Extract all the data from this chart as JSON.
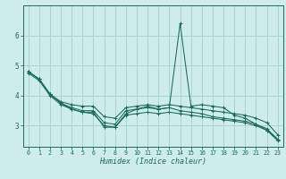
{
  "xlabel": "Humidex (Indice chaleur)",
  "xlim": [
    -0.5,
    23.5
  ],
  "ylim": [
    2.3,
    7.0
  ],
  "xticks": [
    0,
    1,
    2,
    3,
    4,
    5,
    6,
    7,
    8,
    9,
    10,
    11,
    12,
    13,
    14,
    15,
    16,
    17,
    18,
    19,
    20,
    21,
    22,
    23
  ],
  "yticks": [
    3,
    4,
    5,
    6
  ],
  "bg_color": "#ceecea",
  "grid_color": "#aed4d0",
  "line_color": "#1a6b5a",
  "series": [
    {
      "x": [
        0,
        1,
        2,
        3,
        4,
        5,
        6,
        7,
        8,
        9,
        10,
        11,
        12,
        13,
        14,
        15,
        16,
        17,
        18,
        19,
        20,
        21,
        22,
        23
      ],
      "y": [
        4.8,
        4.55,
        4.05,
        3.75,
        3.55,
        3.45,
        3.45,
        2.95,
        2.95,
        3.4,
        3.55,
        3.65,
        3.55,
        3.6,
        6.4,
        3.65,
        3.7,
        3.65,
        3.6,
        3.35,
        3.25,
        3.05,
        2.85,
        2.55
      ]
    },
    {
      "x": [
        0,
        1,
        2,
        3,
        4,
        5,
        6,
        7,
        8,
        9,
        10,
        11,
        12,
        13,
        14,
        15,
        16,
        17,
        18,
        19,
        20,
        21,
        22,
        23
      ],
      "y": [
        4.8,
        4.55,
        4.05,
        3.8,
        3.7,
        3.65,
        3.65,
        3.3,
        3.25,
        3.6,
        3.65,
        3.7,
        3.65,
        3.7,
        3.65,
        3.6,
        3.55,
        3.5,
        3.45,
        3.4,
        3.35,
        3.25,
        3.1,
        2.7
      ]
    },
    {
      "x": [
        0,
        1,
        2,
        3,
        4,
        5,
        6,
        7,
        8,
        9,
        10,
        11,
        12,
        13,
        14,
        15,
        16,
        17,
        18,
        19,
        20,
        21,
        22,
        23
      ],
      "y": [
        4.8,
        4.55,
        4.05,
        3.75,
        3.6,
        3.5,
        3.5,
        3.1,
        3.05,
        3.5,
        3.55,
        3.6,
        3.55,
        3.6,
        3.5,
        3.45,
        3.4,
        3.3,
        3.25,
        3.2,
        3.15,
        3.05,
        2.9,
        2.55
      ]
    },
    {
      "x": [
        0,
        1,
        2,
        3,
        4,
        5,
        6,
        7,
        8,
        9,
        10,
        11,
        12,
        13,
        14,
        15,
        16,
        17,
        18,
        19,
        20,
        21,
        22,
        23
      ],
      "y": [
        4.75,
        4.5,
        4.0,
        3.7,
        3.55,
        3.45,
        3.4,
        3.0,
        2.95,
        3.35,
        3.4,
        3.45,
        3.4,
        3.45,
        3.4,
        3.35,
        3.3,
        3.25,
        3.2,
        3.15,
        3.1,
        3.0,
        2.85,
        2.5
      ]
    }
  ]
}
